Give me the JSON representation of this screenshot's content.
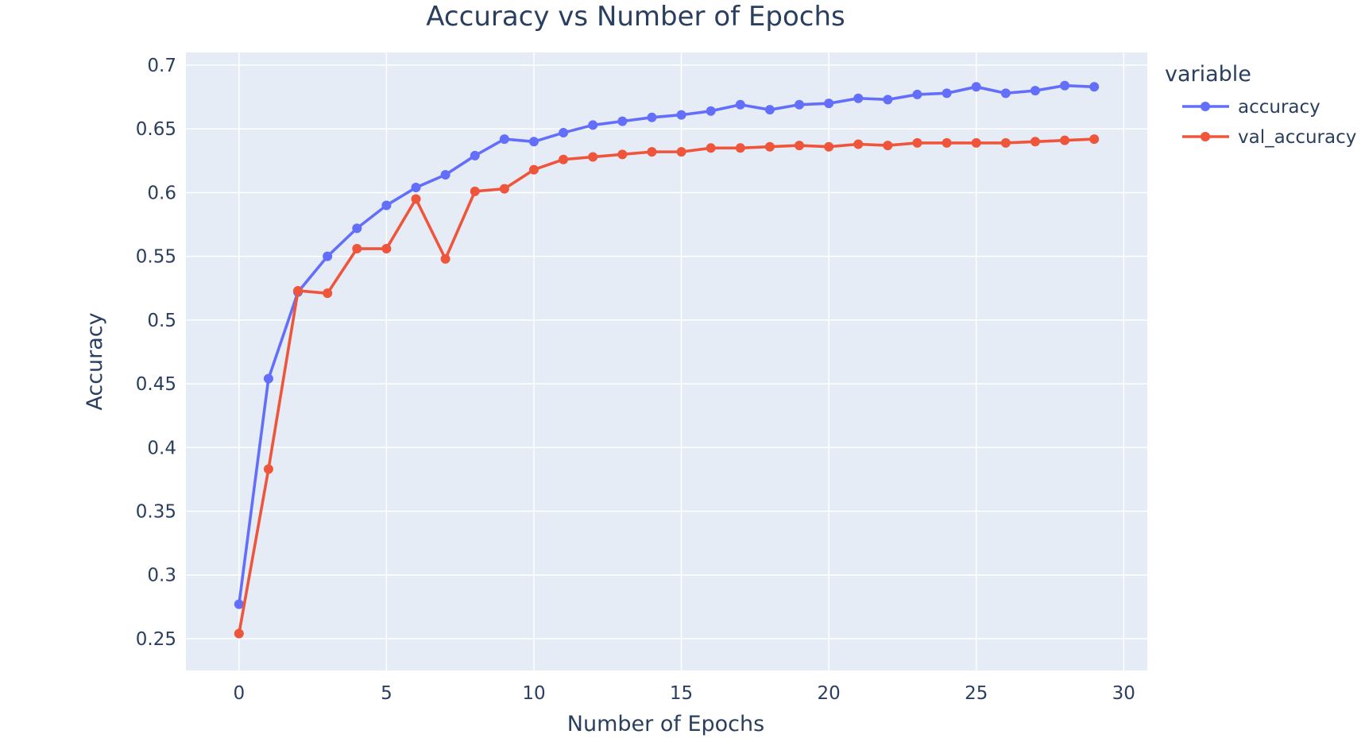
{
  "chart_data": {
    "type": "line",
    "title": "Accuracy vs Number of Epochs",
    "xlabel": "Number of Epochs",
    "ylabel": "Accuracy",
    "xlim": [
      -1.8,
      30.8
    ],
    "ylim": [
      0.225,
      0.71
    ],
    "xticks": [
      0,
      5,
      10,
      15,
      20,
      25,
      30
    ],
    "xtick_labels": [
      "0",
      "5",
      "10",
      "15",
      "20",
      "25",
      "30"
    ],
    "yticks": [
      0.25,
      0.3,
      0.35,
      0.4,
      0.45,
      0.5,
      0.55,
      0.6,
      0.65,
      0.7
    ],
    "ytick_labels": [
      "0.25",
      "0.3",
      "0.35",
      "0.4",
      "0.45",
      "0.5",
      "0.55",
      "0.6",
      "0.65",
      "0.7"
    ],
    "grid": true,
    "legend_title": "variable",
    "legend_position": "right",
    "plot_background": "#e5ecf6",
    "x": [
      0,
      1,
      2,
      3,
      4,
      5,
      6,
      7,
      8,
      9,
      10,
      11,
      12,
      13,
      14,
      15,
      16,
      17,
      18,
      19,
      20,
      21,
      22,
      23,
      24,
      25,
      26,
      27,
      28,
      29
    ],
    "series": [
      {
        "name": "accuracy",
        "color": "#636efa",
        "values": [
          0.277,
          0.454,
          0.522,
          0.55,
          0.572,
          0.59,
          0.604,
          0.614,
          0.629,
          0.642,
          0.64,
          0.647,
          0.653,
          0.656,
          0.659,
          0.661,
          0.664,
          0.669,
          0.665,
          0.669,
          0.67,
          0.674,
          0.673,
          0.677,
          0.678,
          0.683,
          0.678,
          0.68,
          0.684,
          0.683
        ]
      },
      {
        "name": "val_accuracy",
        "color": "#ef553b",
        "values": [
          0.254,
          0.383,
          0.523,
          0.521,
          0.556,
          0.556,
          0.595,
          0.548,
          0.601,
          0.603,
          0.618,
          0.626,
          0.628,
          0.63,
          0.632,
          0.632,
          0.635,
          0.635,
          0.636,
          0.637,
          0.636,
          0.638,
          0.637,
          0.639,
          0.639,
          0.639,
          0.639,
          0.64,
          0.641,
          0.642
        ]
      }
    ]
  }
}
